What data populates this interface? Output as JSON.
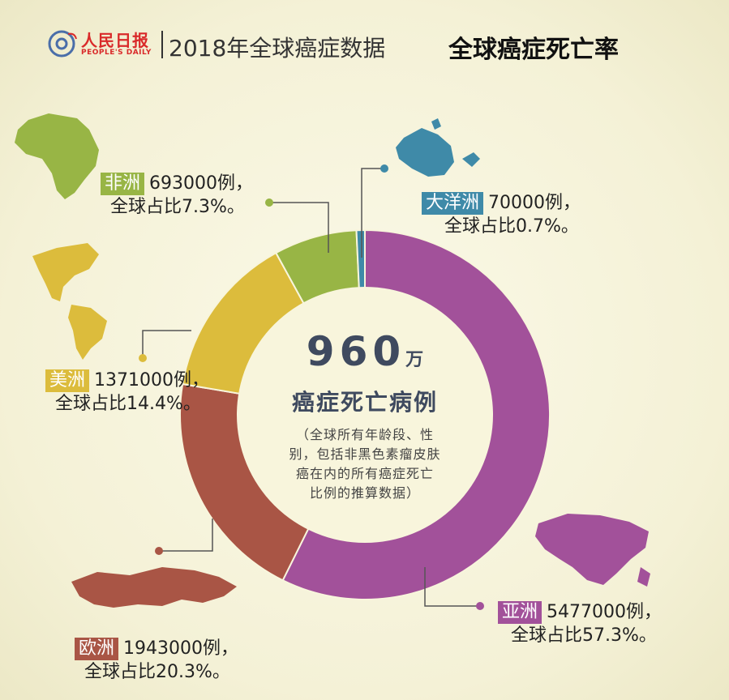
{
  "header": {
    "logo_at": "@",
    "logo_name": "人民日报",
    "logo_en": "PEOPLE'S DAILY",
    "title": "2018年全球癌症数据",
    "subtitle": "全球癌症死亡率"
  },
  "center": {
    "number": "960",
    "unit": "万",
    "label": "癌症死亡病例",
    "note_lines": [
      "（全球所有年龄段、性",
      "别，包括非黑色素瘤皮肤",
      "癌在内的所有癌症死亡",
      "比例的推算数据）"
    ]
  },
  "colors": {
    "asia": "#a2519a",
    "europe": "#a95545",
    "americas": "#dcbc3c",
    "africa": "#98b545",
    "oceania": "#3f8aa8"
  },
  "chart_data": {
    "type": "pie",
    "donut": true,
    "total": "960万",
    "categories": [
      "亚洲",
      "欧洲",
      "美洲",
      "非洲",
      "大洋洲"
    ],
    "values": [
      5477000,
      1943000,
      1371000,
      693000,
      70000
    ],
    "percents": [
      57.3,
      20.3,
      14.4,
      7.3,
      0.7
    ]
  },
  "labels": {
    "asia": {
      "name": "亚洲",
      "count": "5477000例，",
      "share": "全球占比57.3%。"
    },
    "europe": {
      "name": "欧洲",
      "count": "1943000例，",
      "share": "全球占比20.3%。"
    },
    "americas": {
      "name": "美洲",
      "count": "1371000例，",
      "share": "全球占比14.4%。"
    },
    "africa": {
      "name": "非洲",
      "count": "693000例，",
      "share": "全球占比7.3%。"
    },
    "oceania": {
      "name": "大洋洲",
      "count": "70000例，",
      "share": "全球占比0.7%。"
    }
  }
}
